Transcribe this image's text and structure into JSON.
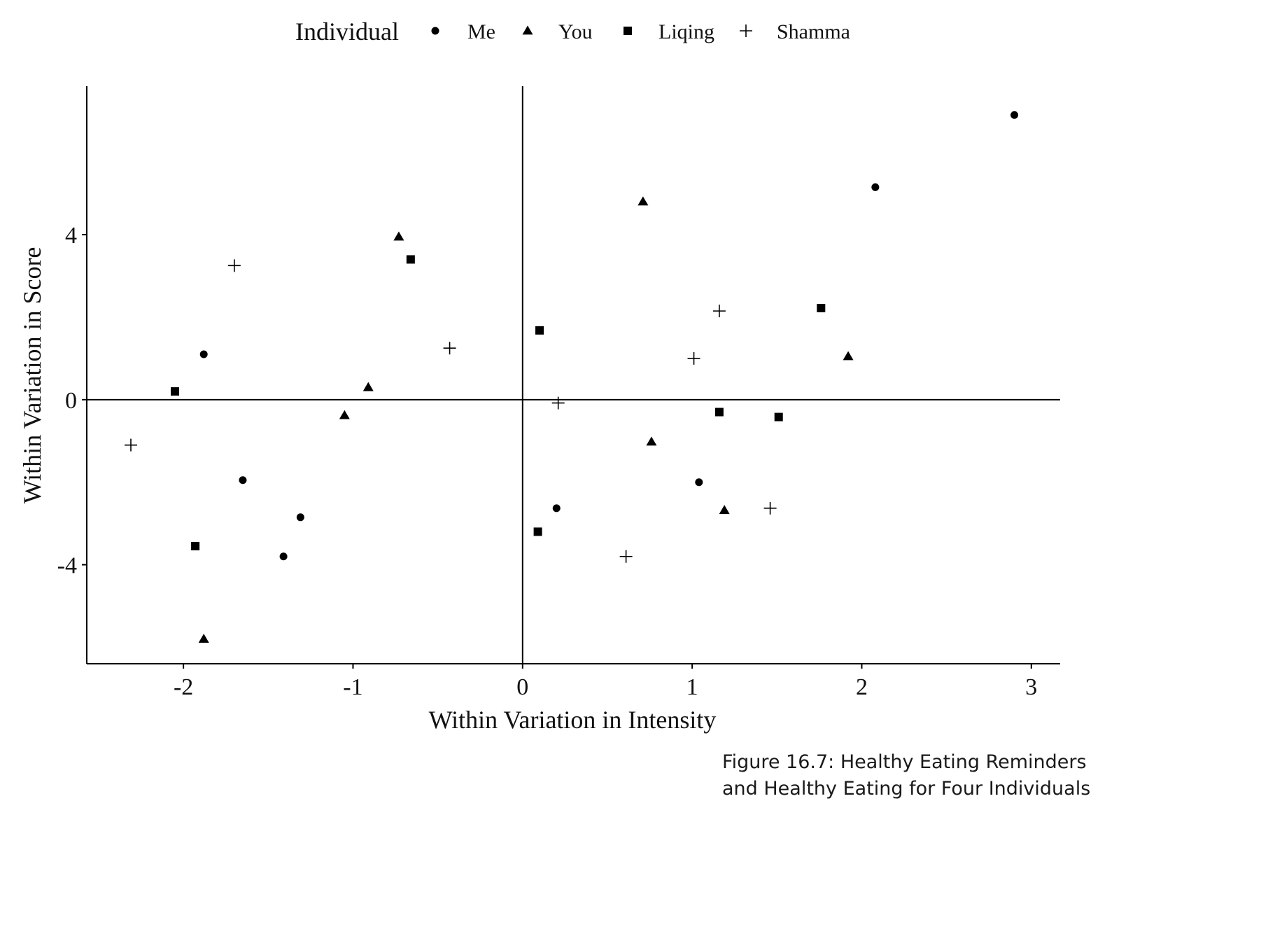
{
  "chart_data": {
    "type": "scatter",
    "title": "",
    "xlabel": "Within Variation in Intensity",
    "ylabel": "Within Variation in Score",
    "xlim": [
      -2.57,
      3.17
    ],
    "ylim": [
      -6.4,
      7.6
    ],
    "x_ticks": [
      "-2",
      "-1",
      "0",
      "1",
      "2",
      "3"
    ],
    "x_tick_values": [
      -2,
      -1,
      0,
      1,
      2,
      3
    ],
    "y_ticks": [
      "4",
      "0",
      "-4"
    ],
    "y_tick_values": [
      4,
      0,
      -4
    ],
    "reference_lines": {
      "x": 0,
      "y": 0
    },
    "grid": false,
    "legend": {
      "title": "Individual",
      "position": "top"
    },
    "series": [
      {
        "name": "Me",
        "marker": "circle",
        "points": [
          [
            2.9,
            6.9
          ],
          [
            2.08,
            5.15
          ],
          [
            -1.88,
            1.1
          ],
          [
            -1.65,
            -1.95
          ],
          [
            -1.31,
            -2.85
          ],
          [
            -1.41,
            -3.8
          ],
          [
            0.2,
            -2.63
          ],
          [
            1.04,
            -2.0
          ]
        ]
      },
      {
        "name": "You",
        "marker": "triangle",
        "points": [
          [
            0.71,
            4.8
          ],
          [
            -0.73,
            3.95
          ],
          [
            -0.91,
            0.3
          ],
          [
            -1.05,
            -0.38
          ],
          [
            0.76,
            -1.02
          ],
          [
            1.19,
            -2.68
          ],
          [
            1.92,
            1.05
          ],
          [
            -1.88,
            -5.8
          ]
        ]
      },
      {
        "name": "Liqing",
        "marker": "square",
        "points": [
          [
            -0.66,
            3.4
          ],
          [
            -2.05,
            0.2
          ],
          [
            0.1,
            1.68
          ],
          [
            1.76,
            2.22
          ],
          [
            1.16,
            -0.3
          ],
          [
            1.51,
            -0.42
          ],
          [
            -1.93,
            -3.55
          ],
          [
            0.09,
            -3.2
          ]
        ]
      },
      {
        "name": "Shamma",
        "marker": "plus",
        "points": [
          [
            -1.7,
            3.25
          ],
          [
            -0.43,
            1.25
          ],
          [
            -2.31,
            -1.1
          ],
          [
            1.16,
            2.15
          ],
          [
            1.01,
            1.0
          ],
          [
            0.21,
            -0.08
          ],
          [
            1.46,
            -2.63
          ],
          [
            0.61,
            -3.8
          ]
        ]
      }
    ]
  },
  "caption": "Figure 16.7: Healthy Eating Reminders and Healthy Eating for Four Individuals"
}
